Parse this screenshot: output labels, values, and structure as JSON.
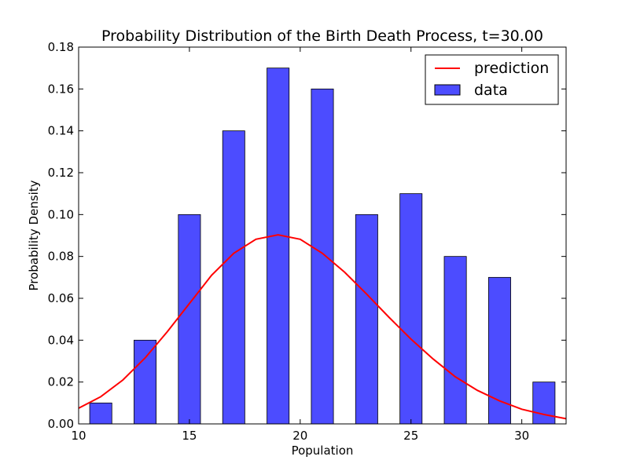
{
  "chart_data": {
    "type": "bar",
    "title": "Probability Distribution of the Birth Death Process, t=30.00",
    "xlabel": "Population",
    "ylabel": "Probability Density",
    "xlim": [
      10,
      32
    ],
    "ylim": [
      0,
      0.18
    ],
    "xticks": [
      "10",
      "15",
      "20",
      "25",
      "30"
    ],
    "yticks": [
      "0.00",
      "0.02",
      "0.04",
      "0.06",
      "0.08",
      "0.10",
      "0.12",
      "0.14",
      "0.16",
      "0.18"
    ],
    "grid": false,
    "legend_position": "top-right",
    "bars": {
      "name": "data",
      "color": "#4c4cff",
      "x_start": [
        10.5,
        12.5,
        14.5,
        16.5,
        18.5,
        20.5,
        22.5,
        24.5,
        26.5,
        28.5,
        30.5
      ],
      "x_end": [
        11.5,
        13.5,
        15.5,
        17.5,
        19.5,
        21.5,
        23.5,
        25.5,
        27.5,
        29.5,
        31.5
      ],
      "values": [
        0.01,
        0.04,
        0.1,
        0.14,
        0.17,
        0.16,
        0.1,
        0.11,
        0.08,
        0.07,
        0.02
      ]
    },
    "line": {
      "name": "prediction",
      "color": "#ff0000",
      "x": [
        10,
        11,
        12,
        13,
        14,
        15,
        16,
        17,
        18,
        19,
        20,
        21,
        22,
        23,
        24,
        25,
        26,
        27,
        28,
        29,
        30,
        31,
        32
      ],
      "y": [
        0.0075,
        0.013,
        0.021,
        0.0315,
        0.044,
        0.0575,
        0.071,
        0.0815,
        0.0882,
        0.0903,
        0.0882,
        0.0815,
        0.0725,
        0.062,
        0.051,
        0.0405,
        0.031,
        0.0225,
        0.016,
        0.011,
        0.007,
        0.0045,
        0.0025
      ]
    }
  }
}
